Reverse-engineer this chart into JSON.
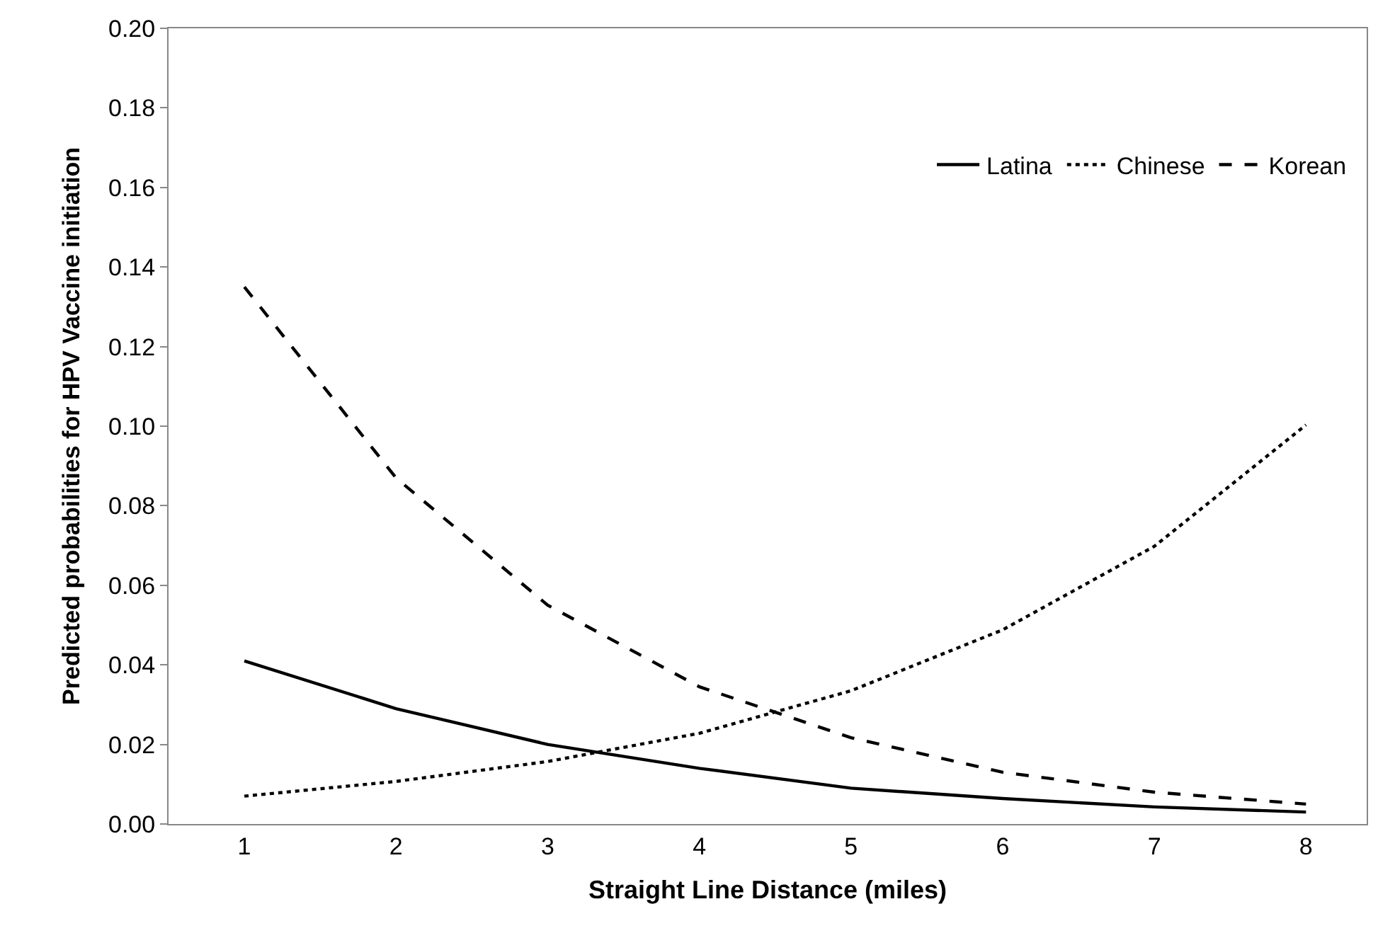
{
  "chart_data": {
    "type": "line",
    "xlabel": "Straight Line Distance (miles)",
    "ylabel": "Predicted probabilities for HPV Vaccine initiation",
    "categories": [
      "1",
      "2",
      "3",
      "4",
      "5",
      "6",
      "7",
      "8"
    ],
    "series": [
      {
        "name": "Latina",
        "color": "#000000",
        "line_style": "solid",
        "values": [
          0.041,
          0.029,
          0.02,
          0.014,
          0.009,
          0.0064,
          0.0043,
          0.003
        ]
      },
      {
        "name": "Chinese",
        "color": "#000000",
        "line_style": "dotted",
        "values": [
          0.007,
          0.0107,
          0.0157,
          0.0228,
          0.0335,
          0.0488,
          0.0698,
          0.1003
        ]
      },
      {
        "name": "Korean",
        "color": "#000000",
        "line_style": "dashed",
        "values": [
          0.135,
          0.087,
          0.055,
          0.0345,
          0.0217,
          0.013,
          0.008,
          0.005
        ]
      }
    ],
    "ylim": [
      0,
      0.2
    ],
    "yticks": [
      {
        "value": 0,
        "label": "0.00"
      },
      {
        "value": 0.02,
        "label": "0.02"
      },
      {
        "value": 0.04,
        "label": "0.04"
      },
      {
        "value": 0.06,
        "label": "0.06"
      },
      {
        "value": 0.08,
        "label": "0.08"
      },
      {
        "value": 0.1,
        "label": "0.10"
      },
      {
        "value": 0.12,
        "label": "0.12"
      },
      {
        "value": 0.14,
        "label": "0.14"
      },
      {
        "value": 0.16,
        "label": "0.16"
      },
      {
        "value": 0.18,
        "label": "0.18"
      },
      {
        "value": 0.2,
        "label": "0.20"
      }
    ],
    "legend": "top right",
    "marker": "none"
  }
}
